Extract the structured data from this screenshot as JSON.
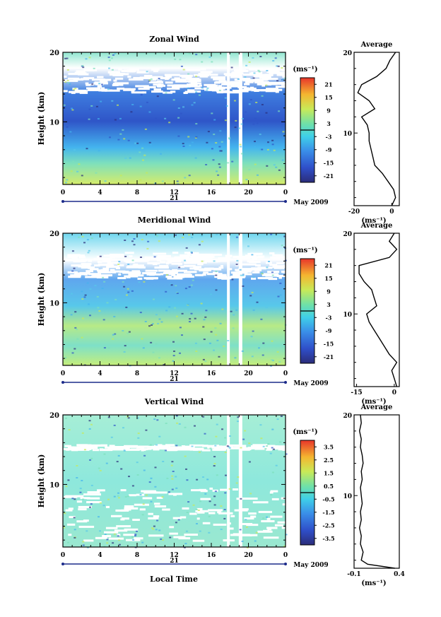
{
  "date_label": "May 2009",
  "xaxis": {
    "title": "Local Time",
    "ticks": [
      "0",
      "4",
      "8",
      "12",
      "16",
      "20",
      "0"
    ],
    "day_label": "21"
  },
  "yaxis": {
    "title": "Height (km)",
    "ticks": [
      "10",
      "20"
    ],
    "ylim": [
      1,
      20
    ]
  },
  "unit_label": "(ms⁻¹)",
  "profile_title": "Average",
  "chart_data": [
    {
      "type": "heatmap",
      "title": "Zonal Wind",
      "colorbar_ticks": [
        "21",
        "15",
        "9",
        "3",
        "-3",
        "-9",
        "-15",
        "-21"
      ],
      "clim": [
        -24,
        24
      ],
      "profile": {
        "xticks": [
          "-20",
          "0"
        ],
        "xlim": [
          -20,
          4
        ],
        "heights": [
          1,
          2,
          3,
          4,
          5,
          6,
          7,
          8,
          9,
          10,
          11,
          12,
          13,
          14,
          15,
          16,
          17,
          18,
          19,
          20
        ],
        "values": [
          0,
          2,
          1,
          -2,
          -5,
          -9,
          -10,
          -11,
          -12,
          -12,
          -13,
          -16,
          -9,
          -12,
          -18,
          -16,
          -8,
          -3,
          -1,
          2
        ]
      }
    },
    {
      "type": "heatmap",
      "title": "Meridional Wind",
      "colorbar_ticks": [
        "21",
        "15",
        "9",
        "3",
        "-3",
        "-9",
        "-15",
        "-21"
      ],
      "clim": [
        -24,
        24
      ],
      "profile": {
        "xticks": [
          "-15",
          "0"
        ],
        "xlim": [
          -16,
          2
        ],
        "heights": [
          1,
          2,
          3,
          4,
          5,
          6,
          7,
          8,
          9,
          10,
          11,
          12,
          13,
          14,
          15,
          16,
          17,
          18,
          19,
          20
        ],
        "values": [
          1,
          0,
          -1,
          1,
          -2,
          -4,
          -6,
          -8,
          -10,
          -11,
          -7,
          -8,
          -9,
          -12,
          -14,
          -14,
          -2,
          1,
          -2,
          0
        ]
      }
    },
    {
      "type": "heatmap",
      "title": "Vertical Wind",
      "colorbar_ticks": [
        "3.5",
        "2.5",
        "1.5",
        "0.5",
        "-0.5",
        "-1.5",
        "-2.5",
        "-3.5"
      ],
      "clim": [
        -4,
        4
      ],
      "profile": {
        "xticks": [
          "-0.1",
          "0.4"
        ],
        "xlim": [
          -0.1,
          0.4
        ],
        "heights": [
          1,
          1.5,
          2,
          3,
          4,
          5,
          6,
          7,
          8,
          9,
          10,
          11,
          12,
          13,
          14,
          15,
          16,
          17,
          18,
          19,
          20
        ],
        "values": [
          0.35,
          0.05,
          -0.02,
          0.0,
          -0.03,
          -0.02,
          -0.04,
          -0.02,
          -0.03,
          -0.01,
          -0.02,
          -0.03,
          -0.01,
          -0.02,
          0.0,
          -0.01,
          -0.03,
          -0.02,
          -0.04,
          -0.02,
          -0.03
        ]
      }
    }
  ]
}
